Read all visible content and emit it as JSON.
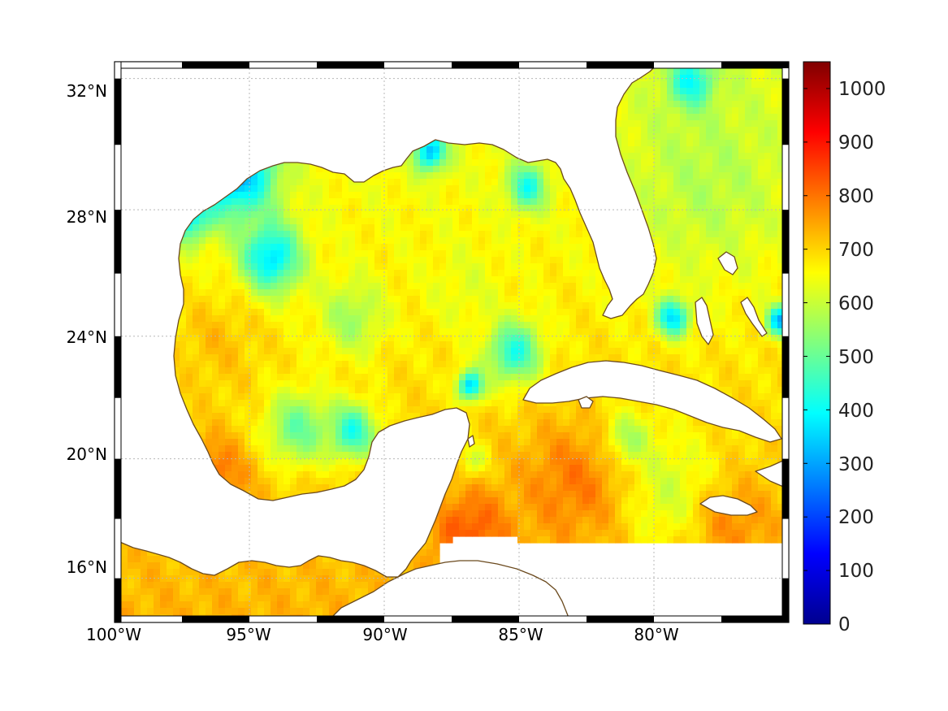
{
  "map": {
    "region": "Gulf of Mexico and Caribbean",
    "projection": "Mercator",
    "lon_range": [
      -100,
      -75
    ],
    "lat_range": [
      14.5,
      32.5
    ],
    "grid": true,
    "lon_ticks": [
      {
        "value": -100,
        "label": "100°W"
      },
      {
        "value": -95,
        "label": "95°W"
      },
      {
        "value": -90,
        "label": "90°W"
      },
      {
        "value": -85,
        "label": "85°W"
      },
      {
        "value": -80,
        "label": "80°W"
      }
    ],
    "lat_ticks": [
      {
        "value": 32,
        "label": "32°N"
      },
      {
        "value": 28,
        "label": "28°N"
      },
      {
        "value": 24,
        "label": "24°N"
      },
      {
        "value": 20,
        "label": "20°N"
      },
      {
        "value": 16,
        "label": "16°N"
      }
    ],
    "coastline_color": "#6b4a1e",
    "grid_color": "#b8b8b8"
  },
  "colorbar": {
    "colormap": "jet",
    "range": [
      0,
      1050
    ],
    "placement": "right",
    "ticks": [
      "0",
      "100",
      "200",
      "300",
      "400",
      "500",
      "600",
      "700",
      "800",
      "900",
      "1000"
    ],
    "tick_values": [
      0,
      100,
      200,
      300,
      400,
      500,
      600,
      700,
      800,
      900,
      1000
    ]
  },
  "field": {
    "background_value": 690,
    "features": [
      {
        "lon": -95.5,
        "lat": 29.2,
        "value": 280,
        "spread": 1.4
      },
      {
        "lon": -97.4,
        "lat": 28.0,
        "value": 300,
        "spread": 0.9
      },
      {
        "lon": -94.2,
        "lat": 26.5,
        "value": 360,
        "spread": 1.1
      },
      {
        "lon": -88.3,
        "lat": 29.8,
        "value": 330,
        "spread": 0.6
      },
      {
        "lon": -84.7,
        "lat": 28.7,
        "value": 420,
        "spread": 0.7
      },
      {
        "lon": -78.6,
        "lat": 31.8,
        "value": 280,
        "spread": 0.8
      },
      {
        "lon": -78.0,
        "lat": 29.0,
        "value": 580,
        "spread": 3.0
      },
      {
        "lon": -79.3,
        "lat": 24.6,
        "value": 360,
        "spread": 0.6
      },
      {
        "lon": -75.3,
        "lat": 24.5,
        "value": 320,
        "spread": 0.5
      },
      {
        "lon": -85.2,
        "lat": 23.5,
        "value": 420,
        "spread": 1.0
      },
      {
        "lon": -86.8,
        "lat": 22.4,
        "value": 350,
        "spread": 0.5
      },
      {
        "lon": -91.2,
        "lat": 20.9,
        "value": 420,
        "spread": 0.9
      },
      {
        "lon": -93.2,
        "lat": 21.0,
        "value": 500,
        "spread": 1.2
      },
      {
        "lon": -86.7,
        "lat": 19.9,
        "value": 600,
        "spread": 0.6
      },
      {
        "lon": -81.0,
        "lat": 20.5,
        "value": 480,
        "spread": 0.9
      },
      {
        "lon": -79.5,
        "lat": 18.9,
        "value": 600,
        "spread": 2.0
      },
      {
        "lon": -96.4,
        "lat": 19.4,
        "value": 810,
        "spread": 1.3
      },
      {
        "lon": -86.8,
        "lat": 17.6,
        "value": 830,
        "spread": 1.4
      },
      {
        "lon": -83.0,
        "lat": 19.2,
        "value": 790,
        "spread": 2.0
      },
      {
        "lon": -77.0,
        "lat": 17.8,
        "value": 770,
        "spread": 1.5
      },
      {
        "lon": -91.2,
        "lat": 24.6,
        "value": 560,
        "spread": 1.2
      },
      {
        "lon": -87.0,
        "lat": 25.5,
        "value": 630,
        "spread": 1.4
      },
      {
        "lon": -96.2,
        "lat": 23.8,
        "value": 720,
        "spread": 1.5
      }
    ]
  }
}
